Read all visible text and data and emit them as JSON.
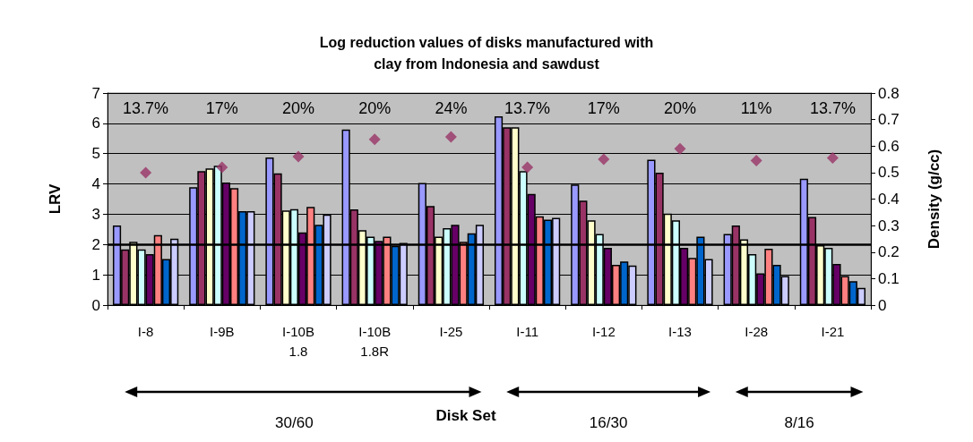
{
  "chart_data": {
    "type": "bar",
    "title": "Log reduction values of disks manufactured with\nclay from Indonesia and sawdust",
    "xlabel": "Disk Set",
    "ylabel": "LRV",
    "y2label": "Density (g/cc)",
    "categories": [
      "I-8",
      "I-9B",
      "I-10B\n1.8",
      "I-10B\n1.8R",
      "I-25",
      "I-11",
      "I-12",
      "I-13",
      "I-28",
      "I-21"
    ],
    "series": [
      {
        "color": "#9999ff",
        "values": [
          2.63,
          3.89,
          4.87,
          5.8,
          4.03,
          6.23,
          3.98,
          4.8,
          2.35,
          4.17
        ]
      },
      {
        "color": "#993366",
        "values": [
          1.84,
          4.42,
          4.35,
          3.16,
          3.27,
          5.87,
          3.45,
          4.37,
          2.63,
          2.91
        ]
      },
      {
        "color": "#ffffcc",
        "values": [
          2.09,
          4.51,
          3.12,
          2.47,
          2.26,
          5.87,
          2.8,
          3.02,
          2.17,
          1.98
        ]
      },
      {
        "color": "#ccffff",
        "values": [
          1.84,
          4.6,
          3.17,
          2.26,
          2.54,
          4.42,
          2.35,
          2.8,
          1.68,
          1.89
        ]
      },
      {
        "color": "#660066",
        "values": [
          1.68,
          4.05,
          2.4,
          2.12,
          2.65,
          3.67,
          1.89,
          1.89,
          1.05,
          1.36
        ]
      },
      {
        "color": "#ff8080",
        "values": [
          2.31,
          3.86,
          3.24,
          2.26,
          2.09,
          2.93,
          1.33,
          1.56,
          1.86,
          0.96
        ]
      },
      {
        "color": "#0066cc",
        "values": [
          1.52,
          3.1,
          2.65,
          1.96,
          2.37,
          2.82,
          1.44,
          2.26,
          1.33,
          0.79
        ]
      },
      {
        "color": "#ccccff",
        "values": [
          2.19,
          3.1,
          2.99,
          2.05,
          2.65,
          2.88,
          1.31,
          1.52,
          0.96,
          0.57
        ]
      },
      {
        "type": "scatter",
        "axis": "y2",
        "color": "#993366",
        "marker": "diamond",
        "x": [
          "I-8",
          "I-9B",
          "I-10B\n1.8",
          "I-10B\n1.8R",
          "I-25",
          "I-11",
          "I-12",
          "I-13",
          "I-28",
          "I-21"
        ],
        "values": [
          0.5,
          0.52,
          0.56,
          0.625,
          0.635,
          0.52,
          0.55,
          0.59,
          0.545,
          0.555
        ]
      }
    ],
    "ylim": [
      0,
      7
    ],
    "yticks": [
      0,
      1,
      2,
      3,
      4,
      5,
      6,
      7
    ],
    "y2lim": [
      0,
      0.8
    ],
    "y2ticks": [
      0,
      0.1,
      0.2,
      0.3,
      0.4,
      0.5,
      0.6,
      0.7,
      0.8
    ],
    "grid": "y",
    "ref_lines": [
      {
        "axis": "y",
        "value": 2,
        "color": "#000000"
      }
    ],
    "annotations": [
      "13.7%",
      "17%",
      "20%",
      "20%",
      "24%",
      "13.7%",
      "17%",
      "20%",
      "11%",
      "13.7%",
      "30/60",
      "16/30",
      "8/16"
    ]
  }
}
